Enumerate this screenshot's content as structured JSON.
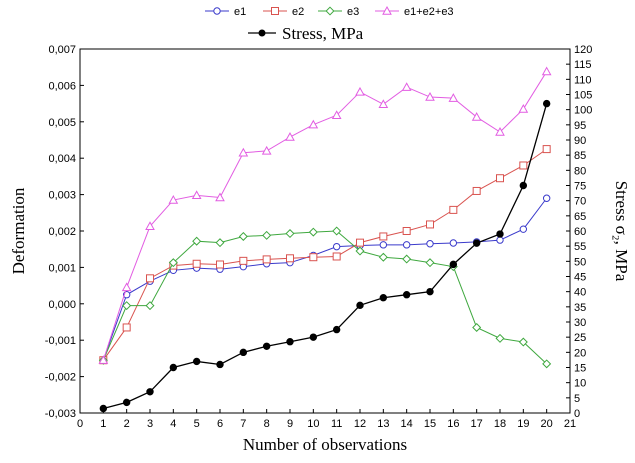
{
  "chart_data": {
    "type": "line",
    "xlabel": "Number of observations",
    "ylabel": "Deformation",
    "y2label": "Stress σ₂, MPa",
    "x_ticks": [
      0,
      1,
      2,
      3,
      4,
      5,
      6,
      7,
      8,
      9,
      10,
      11,
      12,
      13,
      14,
      15,
      16,
      17,
      18,
      19,
      20,
      21
    ],
    "xlim": [
      0,
      21
    ],
    "ylim": [
      -0.003,
      0.007
    ],
    "y_ticks": [
      "-0,003",
      "-0,002",
      "-0,001",
      "0,000",
      "0,001",
      "0,002",
      "0,003",
      "0,004",
      "0,005",
      "0,006",
      "0,007"
    ],
    "y2lim": [
      0,
      120
    ],
    "y2_ticks": [
      0,
      5,
      10,
      15,
      20,
      25,
      30,
      35,
      40,
      45,
      50,
      55,
      60,
      65,
      70,
      75,
      80,
      85,
      90,
      95,
      100,
      105,
      110,
      115,
      120
    ],
    "grid": false,
    "legend_top": [
      {
        "name": "e1",
        "color": "#3a3acb",
        "marker": "circle"
      },
      {
        "name": "e2",
        "color": "#d9534f",
        "marker": "square"
      },
      {
        "name": "e3",
        "color": "#3fa83f",
        "marker": "diamond"
      },
      {
        "name": "e1+e2+e3",
        "color": "#e25de2",
        "marker": "triangle"
      }
    ],
    "legend_second": {
      "name": "Stress, MPa",
      "color": "#000000",
      "marker": "circle"
    },
    "x": [
      1,
      2,
      3,
      4,
      5,
      6,
      7,
      8,
      9,
      10,
      11,
      12,
      13,
      14,
      15,
      16,
      17,
      18,
      19,
      20
    ],
    "series": [
      {
        "name": "e1",
        "axis": "left",
        "color": "#3a3acb",
        "marker": "circle",
        "values": [
          -0.00155,
          0.00025,
          0.00062,
          0.00092,
          0.00098,
          0.00095,
          0.00102,
          0.0011,
          0.00113,
          0.00133,
          0.00157,
          0.0016,
          0.00162,
          0.00162,
          0.00165,
          0.00167,
          0.0017,
          0.00175,
          0.00205,
          0.0029
        ]
      },
      {
        "name": "e2",
        "axis": "left",
        "color": "#d9534f",
        "marker": "square",
        "values": [
          -0.00155,
          -0.00065,
          0.0007,
          0.00105,
          0.0011,
          0.00108,
          0.00118,
          0.00122,
          0.00125,
          0.00128,
          0.0013,
          0.00168,
          0.00185,
          0.002,
          0.00218,
          0.00258,
          0.0031,
          0.00345,
          0.0038,
          0.00425
        ]
      },
      {
        "name": "e3",
        "axis": "left",
        "color": "#3fa83f",
        "marker": "diamond",
        "values": [
          -0.00155,
          -5e-05,
          -5e-05,
          0.00113,
          0.00172,
          0.00168,
          0.00185,
          0.00188,
          0.00193,
          0.00197,
          0.002,
          0.00145,
          0.00128,
          0.00123,
          0.00113,
          0.00102,
          -0.00065,
          -0.00095,
          -0.00105,
          -0.00165
        ]
      },
      {
        "name": "e1+e2+e3",
        "axis": "left",
        "color": "#e25de2",
        "marker": "triangle",
        "values": [
          -0.00155,
          0.00045,
          0.00213,
          0.00285,
          0.00298,
          0.00292,
          0.00415,
          0.0042,
          0.00458,
          0.00492,
          0.00518,
          0.00582,
          0.00548,
          0.00595,
          0.00568,
          0.00565,
          0.00513,
          0.00472,
          0.00535,
          0.00638
        ]
      },
      {
        "name": "Stress, MPa",
        "axis": "right",
        "color": "#000000",
        "marker": "circle",
        "values": [
          1.5,
          3.5,
          7,
          15,
          17,
          16,
          20,
          22,
          23.5,
          25,
          27.5,
          35.5,
          38,
          39,
          40,
          49,
          56,
          59,
          75,
          102
        ]
      }
    ]
  }
}
